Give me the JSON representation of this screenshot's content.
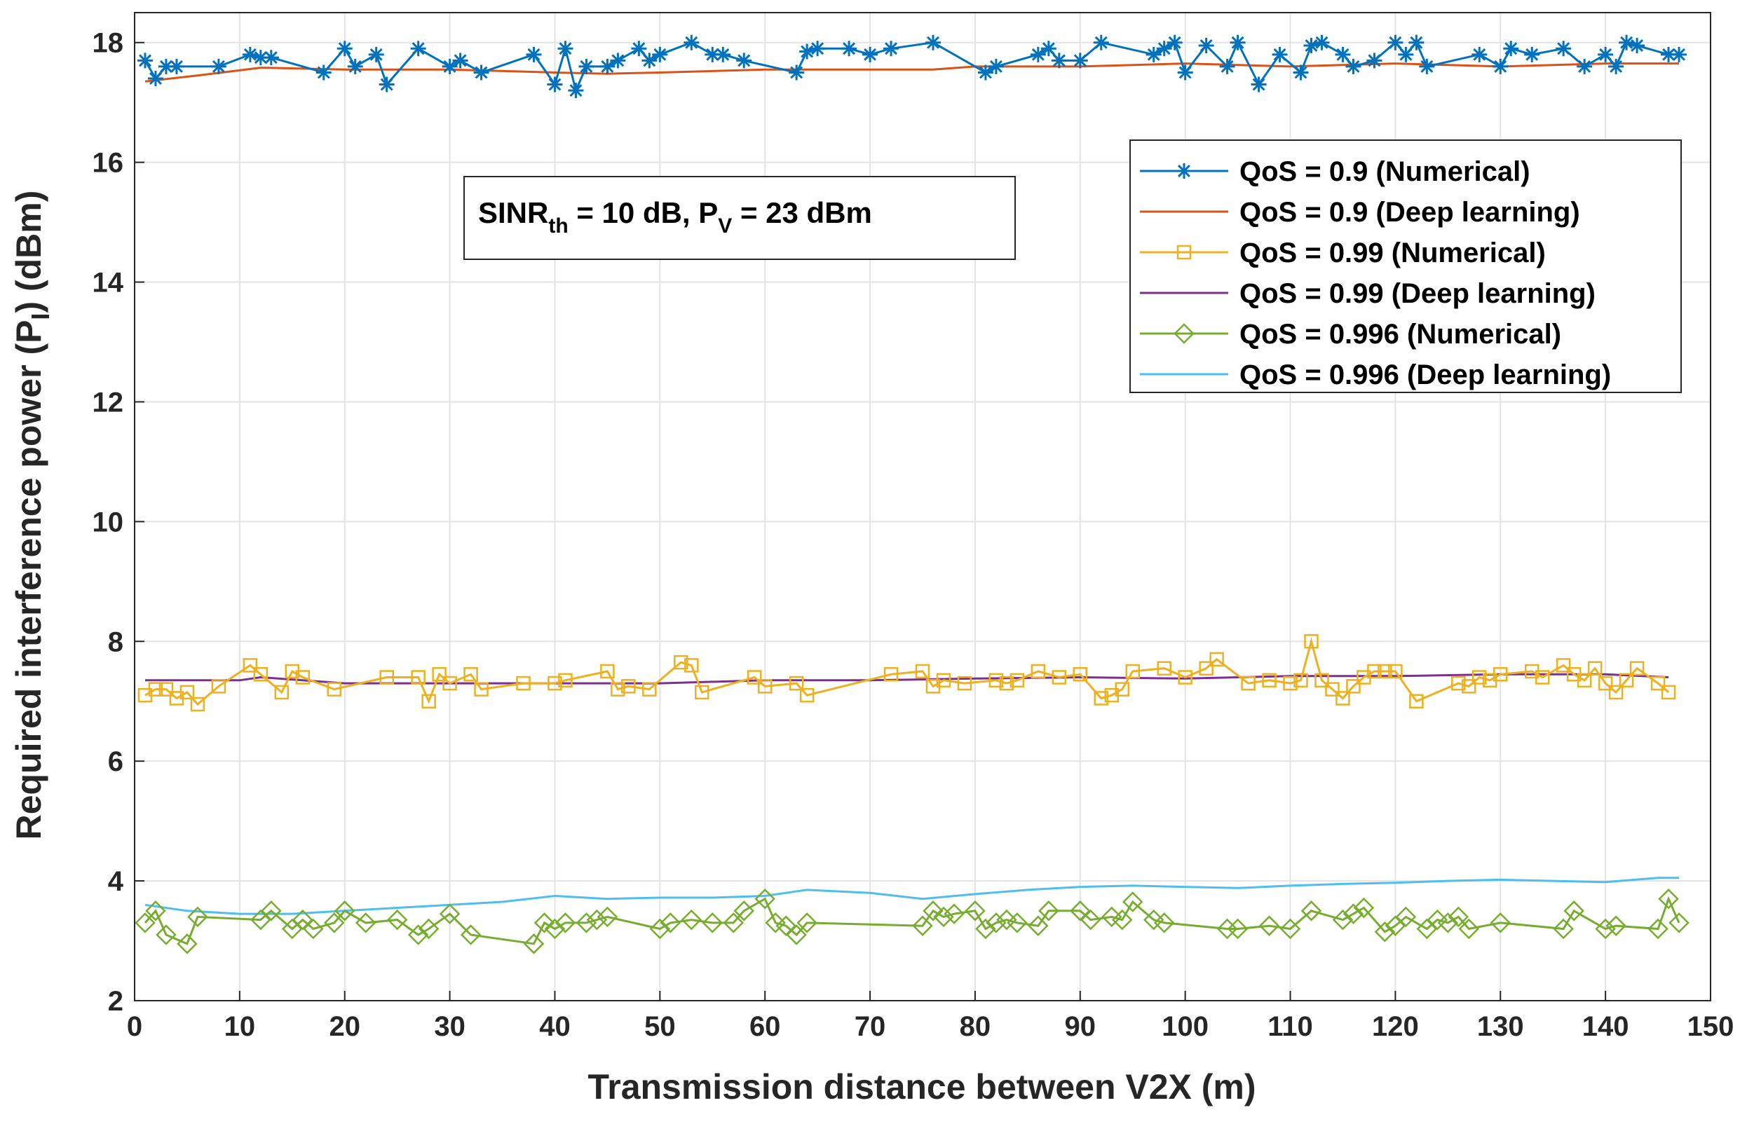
{
  "chart_data": {
    "type": "line",
    "xlabel": "Transmission distance between V2X (m)",
    "ylabel": {
      "main": "Required interference power (P",
      "sub": "I",
      "tail": ") (dBm)"
    },
    "xlim": [
      0,
      150
    ],
    "ylim": [
      2,
      18.5
    ],
    "xticks": [
      0,
      10,
      20,
      30,
      40,
      50,
      60,
      70,
      80,
      90,
      100,
      110,
      120,
      130,
      140,
      150
    ],
    "yticks": [
      2,
      4,
      6,
      8,
      10,
      12,
      14,
      16,
      18
    ],
    "grid": true,
    "legend_position": "top-right",
    "annotation": {
      "sinr": "SINR",
      "sinr_sub": "th",
      "mid": " = 10 dB, P",
      "pv_sub": "V",
      "tail": " = 23 dBm"
    },
    "series": [
      {
        "name": "QoS = 0.9 (Numerical)",
        "color": "#0072bd",
        "marker": "star",
        "x": [
          1,
          2,
          3,
          4,
          8,
          11,
          12,
          13,
          18,
          20,
          21,
          23,
          24,
          27,
          30,
          31,
          33,
          38,
          40,
          41,
          42,
          43,
          45,
          46,
          48,
          49,
          50,
          53,
          55,
          56,
          58,
          63,
          64,
          65,
          68,
          70,
          72,
          76,
          81,
          82,
          86,
          87,
          88,
          90,
          92,
          97,
          98,
          99,
          100,
          102,
          104,
          105,
          107,
          109,
          111,
          112,
          113,
          115,
          116,
          118,
          120,
          121,
          122,
          123,
          128,
          130,
          131,
          133,
          136,
          138,
          140,
          141,
          142,
          143,
          146,
          147
        ],
        "y": [
          17.7,
          17.4,
          17.6,
          17.6,
          17.6,
          17.8,
          17.75,
          17.75,
          17.5,
          17.9,
          17.6,
          17.8,
          17.3,
          17.9,
          17.6,
          17.7,
          17.5,
          17.8,
          17.3,
          17.9,
          17.2,
          17.6,
          17.6,
          17.7,
          17.9,
          17.7,
          17.8,
          18.0,
          17.8,
          17.8,
          17.7,
          17.5,
          17.85,
          17.9,
          17.9,
          17.8,
          17.9,
          18.0,
          17.5,
          17.6,
          17.8,
          17.9,
          17.7,
          17.7,
          18.0,
          17.8,
          17.9,
          18.0,
          17.5,
          17.95,
          17.6,
          18.0,
          17.3,
          17.8,
          17.5,
          17.95,
          18.0,
          17.8,
          17.6,
          17.7,
          18.0,
          17.8,
          18.0,
          17.6,
          17.8,
          17.6,
          17.9,
          17.8,
          17.9,
          17.6,
          17.8,
          17.6,
          18.0,
          17.95,
          17.8,
          17.8
        ]
      },
      {
        "name": "QoS = 0.9 (Deep learning)",
        "color": "#d95319",
        "marker": "none",
        "x": [
          1,
          6,
          12,
          20,
          30,
          40,
          45,
          50,
          60,
          70,
          76,
          80,
          90,
          100,
          110,
          120,
          130,
          140,
          147
        ],
        "y": [
          17.35,
          17.45,
          17.58,
          17.55,
          17.55,
          17.5,
          17.48,
          17.5,
          17.55,
          17.55,
          17.55,
          17.6,
          17.6,
          17.65,
          17.6,
          17.65,
          17.6,
          17.65,
          17.65
        ]
      },
      {
        "name": "QoS = 0.99 (Numerical)",
        "color": "#edb120",
        "marker": "square",
        "x": [
          1,
          2,
          3,
          4,
          5,
          6,
          8,
          11,
          12,
          14,
          15,
          16,
          19,
          24,
          27,
          28,
          29,
          30,
          32,
          33,
          37,
          40,
          41,
          45,
          46,
          47,
          49,
          52,
          53,
          54,
          59,
          60,
          63,
          64,
          72,
          75,
          76,
          77,
          79,
          82,
          83,
          84,
          86,
          88,
          90,
          92,
          93,
          94,
          95,
          98,
          100,
          102,
          103,
          106,
          108,
          110,
          111,
          112,
          113,
          114,
          115,
          116,
          117,
          118,
          119,
          120,
          122,
          126,
          127,
          128,
          129,
          130,
          133,
          134,
          136,
          137,
          138,
          139,
          140,
          141,
          142,
          143,
          145,
          146
        ],
        "y": [
          7.1,
          7.2,
          7.2,
          7.05,
          7.15,
          6.95,
          7.25,
          7.6,
          7.45,
          7.15,
          7.5,
          7.4,
          7.2,
          7.4,
          7.4,
          7.0,
          7.45,
          7.3,
          7.45,
          7.2,
          7.3,
          7.3,
          7.35,
          7.5,
          7.2,
          7.25,
          7.2,
          7.65,
          7.6,
          7.15,
          7.4,
          7.25,
          7.3,
          7.1,
          7.45,
          7.5,
          7.25,
          7.35,
          7.3,
          7.35,
          7.3,
          7.35,
          7.5,
          7.4,
          7.45,
          7.05,
          7.1,
          7.2,
          7.5,
          7.55,
          7.4,
          7.55,
          7.7,
          7.3,
          7.35,
          7.3,
          7.35,
          8.0,
          7.35,
          7.2,
          7.05,
          7.25,
          7.4,
          7.5,
          7.5,
          7.5,
          7.0,
          7.3,
          7.25,
          7.4,
          7.35,
          7.45,
          7.5,
          7.4,
          7.6,
          7.45,
          7.35,
          7.55,
          7.3,
          7.15,
          7.35,
          7.55,
          7.3,
          7.15
        ]
      },
      {
        "name": "QoS = 0.99 (Deep learning)",
        "color": "#7e2f8e",
        "marker": "none",
        "x": [
          1,
          10,
          12,
          20,
          30,
          40,
          50,
          60,
          70,
          80,
          90,
          100,
          110,
          120,
          130,
          140,
          146
        ],
        "y": [
          7.35,
          7.35,
          7.4,
          7.3,
          7.3,
          7.3,
          7.3,
          7.35,
          7.35,
          7.38,
          7.4,
          7.38,
          7.42,
          7.42,
          7.45,
          7.45,
          7.4
        ]
      },
      {
        "name": "QoS = 0.996 (Numerical)",
        "color": "#77ac30",
        "marker": "diamond",
        "x": [
          1,
          2,
          3,
          5,
          6,
          12,
          13,
          15,
          16,
          17,
          19,
          20,
          22,
          25,
          27,
          28,
          30,
          32,
          38,
          39,
          40,
          41,
          43,
          44,
          45,
          50,
          51,
          53,
          55,
          57,
          58,
          60,
          61,
          62,
          63,
          64,
          75,
          76,
          77,
          78,
          80,
          81,
          82,
          83,
          84,
          86,
          87,
          90,
          91,
          93,
          94,
          95,
          97,
          98,
          104,
          105,
          108,
          110,
          112,
          115,
          116,
          117,
          119,
          120,
          121,
          123,
          124,
          125,
          126,
          127,
          130,
          136,
          137,
          140,
          141,
          145,
          146,
          147
        ],
        "y": [
          3.3,
          3.5,
          3.1,
          2.95,
          3.4,
          3.35,
          3.5,
          3.2,
          3.35,
          3.2,
          3.3,
          3.5,
          3.3,
          3.35,
          3.1,
          3.2,
          3.45,
          3.1,
          2.95,
          3.3,
          3.2,
          3.3,
          3.3,
          3.35,
          3.4,
          3.2,
          3.3,
          3.35,
          3.3,
          3.3,
          3.5,
          3.7,
          3.3,
          3.25,
          3.1,
          3.3,
          3.25,
          3.5,
          3.4,
          3.45,
          3.5,
          3.2,
          3.3,
          3.35,
          3.3,
          3.25,
          3.5,
          3.5,
          3.35,
          3.4,
          3.35,
          3.65,
          3.35,
          3.3,
          3.2,
          3.2,
          3.25,
          3.2,
          3.5,
          3.35,
          3.45,
          3.55,
          3.15,
          3.25,
          3.4,
          3.2,
          3.35,
          3.3,
          3.4,
          3.2,
          3.3,
          3.2,
          3.5,
          3.2,
          3.25,
          3.2,
          3.7,
          3.3
        ]
      },
      {
        "name": "QoS = 0.996 (Deep learning)",
        "color": "#4dbeee",
        "marker": "none",
        "x": [
          1,
          5,
          10,
          15,
          20,
          25,
          30,
          35,
          40,
          45,
          50,
          55,
          60,
          64,
          70,
          75,
          80,
          85,
          90,
          95,
          100,
          105,
          110,
          115,
          120,
          125,
          130,
          135,
          140,
          145,
          147
        ],
        "y": [
          3.6,
          3.5,
          3.45,
          3.45,
          3.5,
          3.55,
          3.6,
          3.65,
          3.75,
          3.7,
          3.72,
          3.72,
          3.75,
          3.85,
          3.8,
          3.7,
          3.78,
          3.85,
          3.9,
          3.92,
          3.9,
          3.88,
          3.92,
          3.95,
          3.97,
          4.0,
          4.02,
          4.0,
          3.98,
          4.05,
          4.05
        ]
      }
    ]
  }
}
